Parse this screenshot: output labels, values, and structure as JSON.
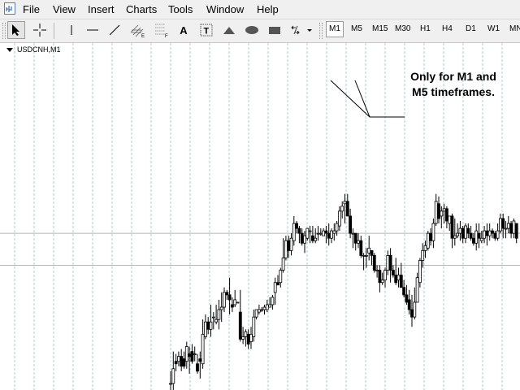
{
  "menu": {
    "items": [
      "File",
      "View",
      "Insert",
      "Charts",
      "Tools",
      "Window",
      "Help"
    ]
  },
  "toolbar": {
    "tools": [
      {
        "icon": "cursor-arrow-icon",
        "active": true
      },
      {
        "icon": "crosshair-icon"
      },
      {
        "icon": "vertical-line-icon"
      },
      {
        "icon": "horizontal-line-icon"
      },
      {
        "icon": "trendline-icon"
      },
      {
        "icon": "equidistant-channel-icon",
        "subscript": "E"
      },
      {
        "icon": "fibonacci-retracement-icon",
        "subscript": "F"
      },
      {
        "icon": "text-icon",
        "glyph": "A"
      },
      {
        "icon": "text-label-icon",
        "glyph": "T"
      },
      {
        "icon": "triangle-icon"
      },
      {
        "icon": "ellipse-icon"
      },
      {
        "icon": "rectangle-icon"
      },
      {
        "icon": "arrows-dropdown-icon"
      }
    ],
    "timeframes": [
      {
        "label": "M1",
        "active": true
      },
      {
        "label": "M5"
      },
      {
        "label": "M15"
      },
      {
        "label": "M30"
      },
      {
        "label": "H1"
      },
      {
        "label": "H4"
      },
      {
        "label": "D1"
      },
      {
        "label": "W1"
      },
      {
        "label": "MN"
      }
    ]
  },
  "chart": {
    "symbol_label": "USDCNH,M1",
    "callout_line1": "Only for M1 and",
    "callout_line2": "M5 timeframes.",
    "colors": {
      "bull_body": "#ffffff",
      "bear_body": "#000000",
      "wick": "#000000",
      "grid": "#a0d6d6",
      "session_separator": "#777777",
      "horizontal_line": "#b4b4b4"
    }
  },
  "chart_data": {
    "type": "candlestick",
    "title": "USDCNH,M1",
    "y_range": [
      0,
      100
    ],
    "horizontal_lines": [
      62,
      49
    ],
    "candles": [
      [
        1,
        1,
        -6,
        6
      ],
      [
        1,
        7,
        -3,
        14
      ],
      [
        10,
        9,
        6,
        13
      ],
      [
        10,
        12,
        8,
        14
      ],
      [
        12,
        8,
        6,
        15
      ],
      [
        11,
        8,
        7,
        14
      ],
      [
        10,
        16,
        7,
        18
      ],
      [
        13,
        12,
        5,
        16
      ],
      [
        14,
        10,
        9,
        17
      ],
      [
        13,
        13,
        10,
        16
      ],
      [
        9,
        6,
        5,
        13
      ],
      [
        11,
        10,
        3,
        14
      ],
      [
        9,
        21,
        7,
        27
      ],
      [
        20,
        26,
        19,
        29
      ],
      [
        26,
        23,
        21,
        28
      ],
      [
        23,
        26,
        20,
        33
      ],
      [
        28,
        28,
        23,
        30
      ],
      [
        26,
        27,
        25,
        33
      ],
      [
        27,
        31,
        23,
        35
      ],
      [
        31,
        32,
        26,
        38
      ],
      [
        32,
        38,
        30,
        40
      ],
      [
        38,
        37,
        35,
        39
      ],
      [
        37,
        35,
        29,
        44
      ],
      [
        33,
        32,
        30,
        36
      ],
      [
        33,
        35,
        32,
        39
      ],
      [
        34,
        34,
        34,
        34
      ],
      [
        30,
        19,
        18,
        39
      ],
      [
        19,
        20,
        17,
        24
      ],
      [
        20,
        22,
        16,
        23
      ],
      [
        21,
        17,
        15,
        23
      ],
      [
        18,
        21,
        15,
        24
      ],
      [
        20,
        28,
        18,
        31
      ],
      [
        28,
        31,
        27,
        31
      ],
      [
        30,
        31,
        29,
        33
      ],
      [
        31,
        31,
        30,
        32
      ],
      [
        31,
        32,
        29,
        33
      ],
      [
        31,
        33,
        30,
        35
      ],
      [
        32,
        33,
        32,
        36
      ],
      [
        33,
        36,
        31,
        37
      ],
      [
        38,
        42,
        33,
        44
      ],
      [
        42,
        41,
        41,
        45
      ],
      [
        42,
        47,
        40,
        48
      ],
      [
        47,
        52,
        46,
        60
      ],
      [
        52,
        59,
        51,
        61
      ],
      [
        59,
        55,
        52,
        61
      ],
      [
        55,
        60,
        53,
        62
      ],
      [
        59,
        66,
        57,
        69
      ],
      [
        66,
        64,
        62,
        67
      ],
      [
        64,
        62,
        58,
        65
      ],
      [
        62,
        58,
        57,
        64
      ],
      [
        58,
        61,
        54,
        63
      ],
      [
        60,
        64,
        59,
        64
      ],
      [
        63,
        63,
        58,
        65
      ],
      [
        61,
        59,
        58,
        65
      ],
      [
        59,
        60,
        58,
        64
      ],
      [
        62,
        62,
        59,
        65
      ],
      [
        62,
        62,
        61,
        64
      ],
      [
        61,
        63,
        61,
        64
      ],
      [
        63,
        62,
        58,
        65
      ],
      [
        62,
        60,
        57,
        66
      ],
      [
        60,
        63,
        58,
        64
      ],
      [
        62,
        63,
        59,
        66
      ],
      [
        63,
        66,
        61,
        67
      ],
      [
        65,
        71,
        63,
        73
      ],
      [
        71,
        73,
        68,
        75
      ],
      [
        74,
        75,
        66,
        78
      ],
      [
        75,
        69,
        69,
        78
      ],
      [
        69,
        62,
        60,
        72
      ],
      [
        62,
        62,
        56,
        64
      ],
      [
        62,
        58,
        55,
        62
      ],
      [
        58,
        59,
        56,
        62
      ],
      [
        59,
        53,
        52,
        61
      ],
      [
        53,
        53,
        47,
        54
      ],
      [
        53,
        53,
        48,
        56
      ],
      [
        54,
        56,
        51,
        61
      ],
      [
        55,
        53,
        49,
        54
      ],
      [
        53,
        47,
        46,
        54
      ],
      [
        47,
        47,
        44,
        49
      ],
      [
        47,
        42,
        38,
        49
      ],
      [
        42,
        43,
        41,
        46
      ],
      [
        43,
        47,
        40,
        48
      ],
      [
        47,
        53,
        45,
        55
      ],
      [
        53,
        47,
        42,
        56
      ],
      [
        47,
        45,
        44,
        49
      ],
      [
        45,
        42,
        41,
        52
      ],
      [
        43,
        45,
        40,
        48
      ],
      [
        45,
        40,
        40,
        50
      ],
      [
        40,
        37,
        36,
        43
      ],
      [
        37,
        34,
        33,
        41
      ],
      [
        35,
        31,
        29,
        39
      ],
      [
        31,
        28,
        24,
        37
      ],
      [
        28,
        34,
        27,
        40
      ],
      [
        34,
        44,
        34,
        46
      ],
      [
        42,
        51,
        40,
        52
      ],
      [
        51,
        55,
        48,
        58
      ],
      [
        55,
        57,
        52,
        59
      ],
      [
        56,
        62,
        55,
        63
      ],
      [
        62,
        59,
        57,
        64
      ],
      [
        59,
        66,
        56,
        68
      ],
      [
        66,
        75,
        65,
        78
      ],
      [
        74,
        68,
        66,
        77
      ],
      [
        69,
        71,
        64,
        73
      ],
      [
        71,
        72,
        66,
        74
      ],
      [
        72,
        67,
        64,
        73
      ],
      [
        66,
        69,
        63,
        69
      ],
      [
        69,
        60,
        56,
        70
      ],
      [
        60,
        61,
        57,
        68
      ],
      [
        61,
        62,
        60,
        66
      ],
      [
        62,
        64,
        59,
        67
      ],
      [
        64,
        60,
        58,
        65
      ],
      [
        60,
        65,
        58,
        66
      ],
      [
        64,
        62,
        60,
        66
      ],
      [
        62,
        60,
        59,
        65
      ],
      [
        60,
        58,
        57,
        62
      ],
      [
        58,
        63,
        55,
        66
      ],
      [
        62,
        60,
        56,
        66
      ],
      [
        59,
        60,
        58,
        63
      ],
      [
        60,
        63,
        58,
        65
      ],
      [
        63,
        61,
        57,
        66
      ],
      [
        61,
        63,
        59,
        66
      ],
      [
        63,
        62,
        60,
        64
      ],
      [
        62,
        60,
        59,
        63
      ],
      [
        60,
        63,
        59,
        66
      ],
      [
        63,
        68,
        62,
        70
      ],
      [
        68,
        64,
        60,
        70
      ],
      [
        64,
        64,
        60,
        67
      ],
      [
        64,
        66,
        62,
        69
      ],
      [
        66,
        62,
        60,
        67
      ],
      [
        62,
        67,
        60,
        68
      ],
      [
        66,
        60,
        58,
        66
      ]
    ]
  }
}
